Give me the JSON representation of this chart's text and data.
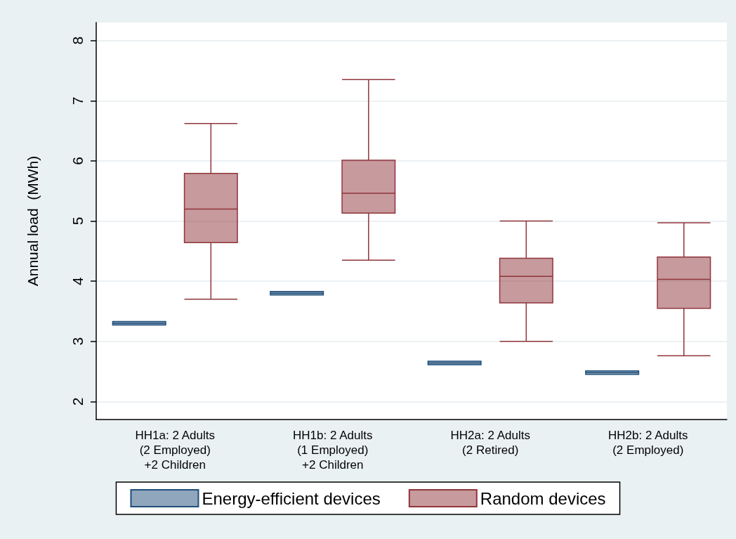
{
  "chart_data": {
    "type": "box",
    "ylabel": "Annual load  (MWh)",
    "categories": [
      "HH1a: 2 Adults\n(2 Employed)\n+2 Children",
      "HH1b: 2 Adults\n(1 Employed)\n+2 Children",
      "HH2a: 2 Adults\n(2 Retired)",
      "HH2b: 2 Adults\n(2 Employed)"
    ],
    "series": [
      {
        "name": "Energy-efficient devices",
        "color": "#1f4e79",
        "boxes": [
          {
            "low": 3.27,
            "q1": 3.27,
            "median": 3.3,
            "q3": 3.33,
            "high": 3.33
          },
          {
            "low": 3.77,
            "q1": 3.77,
            "median": 3.8,
            "q3": 3.83,
            "high": 3.83
          },
          {
            "low": 2.61,
            "q1": 2.61,
            "median": 2.64,
            "q3": 2.67,
            "high": 2.67
          },
          {
            "low": 2.45,
            "q1": 2.45,
            "median": 2.48,
            "q3": 2.51,
            "high": 2.51
          }
        ]
      },
      {
        "name": "Random devices",
        "color": "#90353b",
        "boxes": [
          {
            "low": 3.7,
            "q1": 4.64,
            "median": 5.2,
            "q3": 5.79,
            "high": 6.62
          },
          {
            "low": 4.35,
            "q1": 5.13,
            "median": 5.46,
            "q3": 6.01,
            "high": 7.35
          },
          {
            "low": 3.0,
            "q1": 3.64,
            "median": 4.08,
            "q3": 4.38,
            "high": 5.0
          },
          {
            "low": 2.76,
            "q1": 3.55,
            "median": 4.03,
            "q3": 4.4,
            "high": 4.97
          }
        ]
      }
    ],
    "ylim": [
      1.7,
      8.3
    ],
    "yticks": [
      2,
      3,
      4,
      5,
      6,
      7,
      8
    ],
    "grid": true,
    "legend": "bottom"
  }
}
